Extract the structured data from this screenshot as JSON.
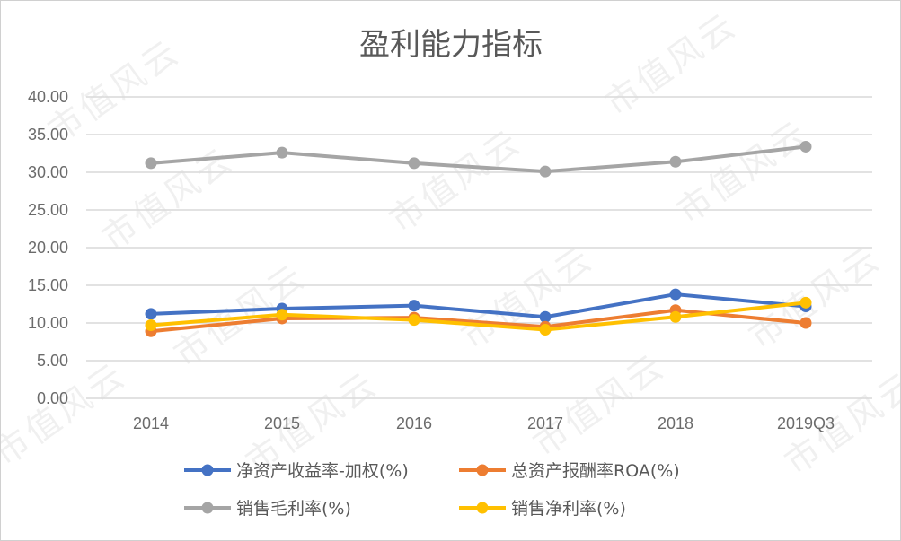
{
  "watermark_text": "市值风云",
  "chart_data": {
    "type": "line",
    "title": "盈利能力指标",
    "categories": [
      "2014",
      "2015",
      "2016",
      "2017",
      "2018",
      "2019Q3"
    ],
    "ylim": [
      0,
      40
    ],
    "y_ticks": [
      "0.00",
      "5.00",
      "10.00",
      "15.00",
      "20.00",
      "25.00",
      "30.00",
      "35.00",
      "40.00"
    ],
    "grid": true,
    "legend_position": "bottom",
    "series": [
      {
        "name": "净资产收益率-加权(%)",
        "color": "#4472C4",
        "values": [
          11.2,
          11.9,
          12.3,
          10.8,
          13.8,
          12.2
        ]
      },
      {
        "name": "总资产报酬率ROA(%)",
        "color": "#ED7D31",
        "values": [
          8.9,
          10.6,
          10.7,
          9.5,
          11.7,
          10.0
        ]
      },
      {
        "name": "销售毛利率(%)",
        "color": "#A5A5A5",
        "values": [
          31.2,
          32.6,
          31.2,
          30.1,
          31.4,
          33.4
        ]
      },
      {
        "name": "销售净利率(%)",
        "color": "#FFC000",
        "values": [
          9.7,
          11.1,
          10.4,
          9.1,
          10.8,
          12.7
        ]
      }
    ]
  }
}
